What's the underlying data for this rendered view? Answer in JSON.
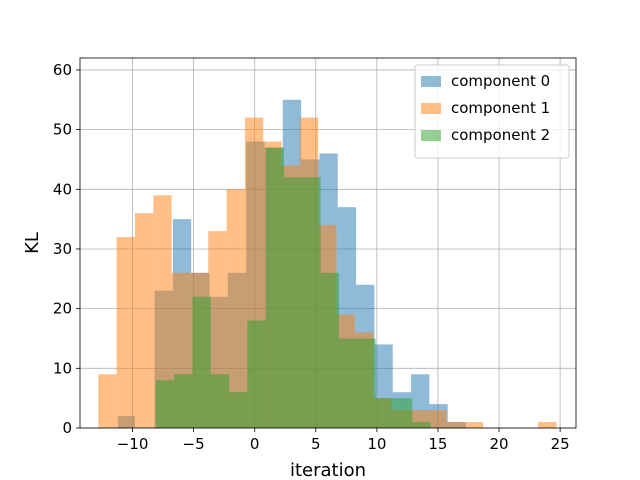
{
  "chart_data": {
    "type": "histogram",
    "title": "",
    "xlabel": "iteration",
    "ylabel": "KL",
    "xlim": [
      -14.3,
      26.3
    ],
    "ylim": [
      0,
      62
    ],
    "xticks": [
      -10,
      -5,
      0,
      5,
      10,
      15,
      20,
      25
    ],
    "yticks": [
      0,
      10,
      20,
      30,
      40,
      50,
      60
    ],
    "grid": true,
    "legend_position": "top-right",
    "bar_alpha": 0.5,
    "series": [
      {
        "name": "component 0",
        "color": "#1f77b4",
        "bins": [
          {
            "x0": -11.2,
            "x1": -9.8,
            "count": 2
          },
          {
            "x0": -8.2,
            "x1": -6.7,
            "count": 23
          },
          {
            "x0": -6.7,
            "x1": -5.2,
            "count": 35
          },
          {
            "x0": -5.2,
            "x1": -3.7,
            "count": 26
          },
          {
            "x0": -3.7,
            "x1": -2.2,
            "count": 22
          },
          {
            "x0": -2.2,
            "x1": -0.7,
            "count": 26
          },
          {
            "x0": -0.7,
            "x1": 0.8,
            "count": 48
          },
          {
            "x0": 0.8,
            "x1": 2.3,
            "count": 47
          },
          {
            "x0": 2.3,
            "x1": 3.8,
            "count": 55
          },
          {
            "x0": 3.8,
            "x1": 5.3,
            "count": 45
          },
          {
            "x0": 5.3,
            "x1": 6.8,
            "count": 46
          },
          {
            "x0": 6.8,
            "x1": 8.3,
            "count": 37
          },
          {
            "x0": 8.3,
            "x1": 9.8,
            "count": 24
          },
          {
            "x0": 9.8,
            "x1": 11.3,
            "count": 14
          },
          {
            "x0": 11.3,
            "x1": 12.8,
            "count": 6
          },
          {
            "x0": 12.8,
            "x1": 14.3,
            "count": 9
          },
          {
            "x0": 14.3,
            "x1": 15.8,
            "count": 4
          },
          {
            "x0": 15.8,
            "x1": 17.3,
            "count": 1
          }
        ]
      },
      {
        "name": "component 1",
        "color": "#ff7f0e",
        "bins": [
          {
            "x0": -12.8,
            "x1": -11.3,
            "count": 9
          },
          {
            "x0": -11.3,
            "x1": -9.8,
            "count": 32
          },
          {
            "x0": -9.8,
            "x1": -8.3,
            "count": 36
          },
          {
            "x0": -8.3,
            "x1": -6.8,
            "count": 39
          },
          {
            "x0": -6.8,
            "x1": -5.3,
            "count": 26
          },
          {
            "x0": -5.3,
            "x1": -3.8,
            "count": 26
          },
          {
            "x0": -3.8,
            "x1": -2.3,
            "count": 33
          },
          {
            "x0": -2.3,
            "x1": -0.8,
            "count": 40
          },
          {
            "x0": -0.8,
            "x1": 0.7,
            "count": 52
          },
          {
            "x0": 0.7,
            "x1": 2.2,
            "count": 48
          },
          {
            "x0": 2.2,
            "x1": 3.7,
            "count": 44
          },
          {
            "x0": 3.7,
            "x1": 5.2,
            "count": 52
          },
          {
            "x0": 5.2,
            "x1": 6.7,
            "count": 34
          },
          {
            "x0": 6.7,
            "x1": 8.2,
            "count": 19
          },
          {
            "x0": 8.2,
            "x1": 9.7,
            "count": 16
          },
          {
            "x0": 9.7,
            "x1": 11.2,
            "count": 5
          },
          {
            "x0": 11.2,
            "x1": 12.7,
            "count": 3
          },
          {
            "x0": 12.7,
            "x1": 14.2,
            "count": 3
          },
          {
            "x0": 14.2,
            "x1": 15.7,
            "count": 3
          },
          {
            "x0": 15.7,
            "x1": 17.2,
            "count": 1
          },
          {
            "x0": 17.2,
            "x1": 18.7,
            "count": 1
          },
          {
            "x0": 23.2,
            "x1": 24.7,
            "count": 1
          }
        ]
      },
      {
        "name": "component 2",
        "color": "#2ca02c",
        "bins": [
          {
            "x0": -8.1,
            "x1": -6.6,
            "count": 8
          },
          {
            "x0": -6.6,
            "x1": -5.1,
            "count": 9
          },
          {
            "x0": -5.1,
            "x1": -3.6,
            "count": 22
          },
          {
            "x0": -3.6,
            "x1": -2.1,
            "count": 9
          },
          {
            "x0": -2.1,
            "x1": -0.6,
            "count": 6
          },
          {
            "x0": -0.6,
            "x1": 0.9,
            "count": 18
          },
          {
            "x0": 0.9,
            "x1": 2.4,
            "count": 47
          },
          {
            "x0": 2.4,
            "x1": 3.9,
            "count": 42
          },
          {
            "x0": 3.9,
            "x1": 5.4,
            "count": 42
          },
          {
            "x0": 5.4,
            "x1": 6.9,
            "count": 26
          },
          {
            "x0": 6.9,
            "x1": 8.4,
            "count": 15
          },
          {
            "x0": 8.4,
            "x1": 9.9,
            "count": 15
          },
          {
            "x0": 9.9,
            "x1": 11.4,
            "count": 5
          },
          {
            "x0": 11.4,
            "x1": 12.9,
            "count": 5
          },
          {
            "x0": 12.9,
            "x1": 14.4,
            "count": 1
          }
        ]
      }
    ]
  }
}
